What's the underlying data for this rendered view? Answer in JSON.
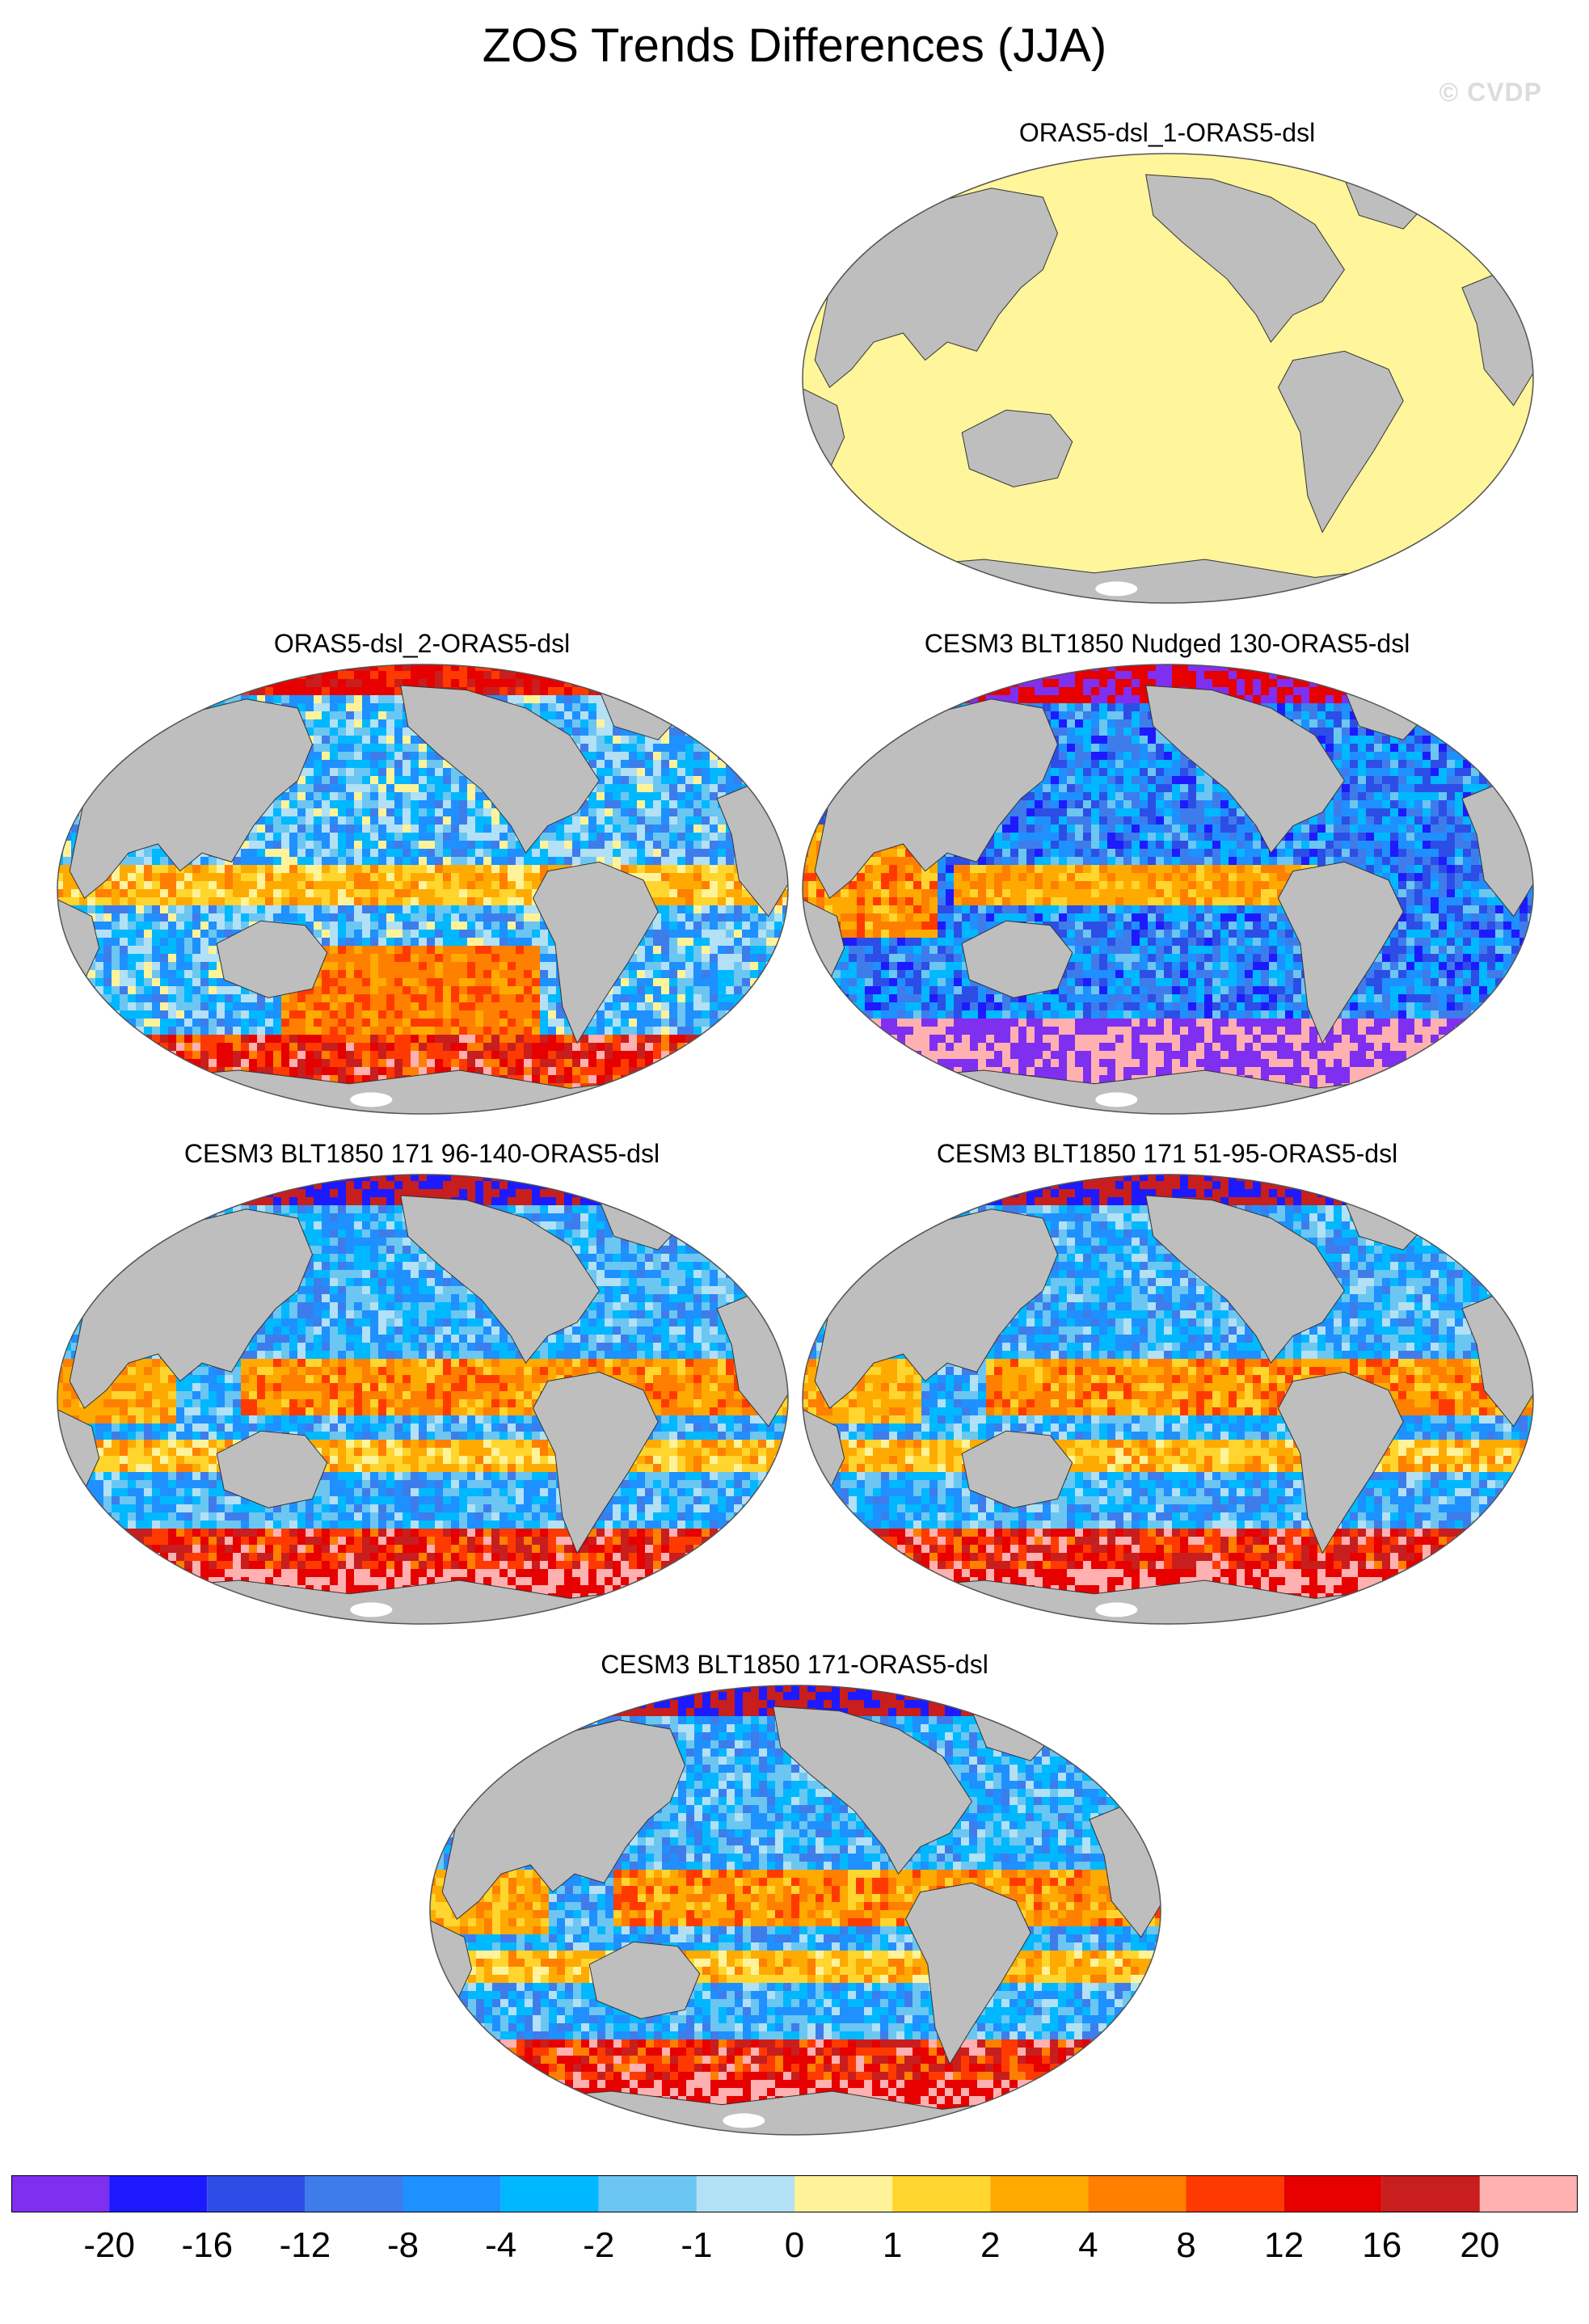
{
  "title": "ZOS Trends Differences (JJA)",
  "watermark": "© CVDP",
  "panels": [
    {
      "label": "ORAS5-dsl_1-ORAS5-dsl",
      "palette": "flat"
    },
    {
      "label": "ORAS5-dsl_2-ORAS5-dsl",
      "palette": "mixed-warm-south"
    },
    {
      "label": "CESM3 BLT1850 Nudged 130-ORAS5-dsl",
      "palette": "cool-dominant"
    },
    {
      "label": "CESM3 BLT1850 171 96-140-ORAS5-dsl",
      "palette": "mixed-warm-bands"
    },
    {
      "label": "CESM3 BLT1850 171 51-95-ORAS5-dsl",
      "palette": "mixed-warm-bands"
    },
    {
      "label": "CESM3 BLT1850 171-ORAS5-dsl",
      "palette": "mixed-warm-bands"
    }
  ],
  "colorbar": {
    "colors": [
      "#7f2ff0",
      "#1e1aff",
      "#2d4ee6",
      "#3e7ceb",
      "#1e90ff",
      "#00b8ff",
      "#6cc6f2",
      "#b2e0f5",
      "#fff39a",
      "#ffd52e",
      "#ffaa00",
      "#ff7f00",
      "#ff3a00",
      "#e60000",
      "#c81e1e",
      "#ffb0b0"
    ],
    "tick_labels": [
      "-20",
      "-16",
      "-12",
      "-8",
      "-4",
      "-2",
      "-1",
      "0",
      "1",
      "2",
      "4",
      "8",
      "12",
      "16",
      "20"
    ]
  },
  "colors": {
    "land": "#bebebe",
    "flat_ocean": "#fff59a",
    "background": "#ffffff"
  }
}
